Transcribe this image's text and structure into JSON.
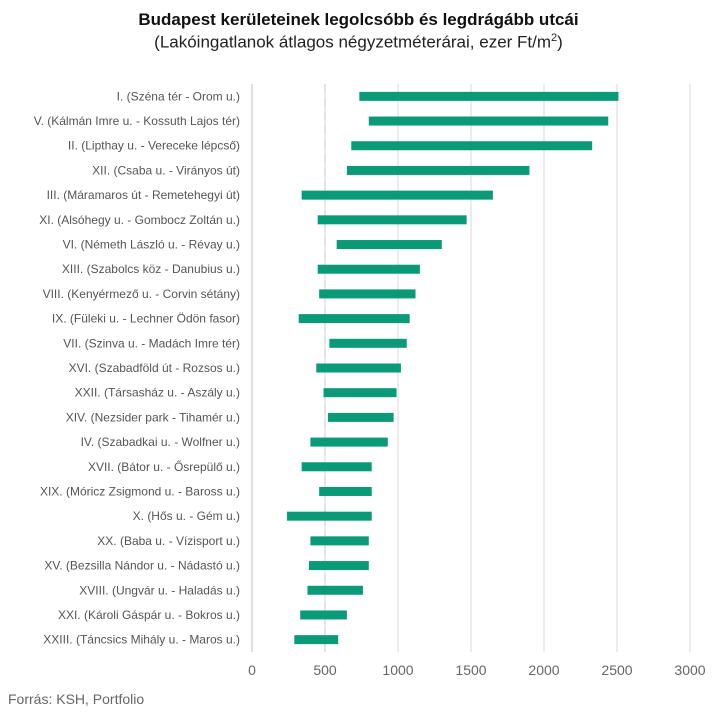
{
  "title": "Budapest kerületeinek legolcsóbb és legdrágább utcái",
  "subtitle_main": "(Lakóingatlanok átlagos négyzetméterárai, ezer Ft/m",
  "subtitle_sup": "2",
  "subtitle_end": ")",
  "source": "Forrás: KSH, Portfolio",
  "colors": {
    "bar": "#0a9a78",
    "grid": "#d9d9d9",
    "axis": "#bfbfbf"
  },
  "chart_data": {
    "type": "bar",
    "orientation": "horizontal",
    "style": "floating range",
    "categories": [
      "I. (Széna tér - Orom u.)",
      "V. (Kálmán Imre u. - Kossuth Lajos tér)",
      "II. (Lipthay u. - Vereceke lépcső)",
      "XII. (Csaba u. - Virányos út)",
      "III. (Máramaros út - Remetehegyi út)",
      "XI. (Alsóhegy u. - Gombocz Zoltán u.)",
      "VI. (Németh László u. - Révay u.)",
      "XIII. (Szabolcs köz - Danubius u.)",
      "VIII. (Kenyérmező u. - Corvin sétány)",
      "IX. (Füleki u. - Lechner Ödön fasor)",
      "VII. (Szinva u. - Madách Imre tér)",
      "XVI. (Szabadföld út - Rozsos u.)",
      "XXII. (Társasház u. - Aszály u.)",
      "XIV. (Nezsider park - Tihamér u.)",
      "IV. (Szabadkai u. - Wolfner u.)",
      "XVII. (Bátor u. - Ősrepülő u.)",
      "XIX. (Móricz Zsigmond u. - Baross u.)",
      "X. (Hős u. - Gém u.)",
      "XX. (Baba u. - Vízisport u.)",
      "XV. (Bezsilla Nándor u. - Nádastó u.)",
      "XVIII. (Ungvár u. - Haladás u.)",
      "XXI. (Károli Gáspár u. - Bokros u.)",
      "XXIII. (Táncsics Mihály u. - Maros u.)"
    ],
    "series": [
      {
        "values_min": [
          735,
          800,
          680,
          650,
          340,
          450,
          580,
          450,
          460,
          320,
          530,
          440,
          490,
          520,
          400,
          340,
          460,
          240,
          400,
          390,
          380,
          330,
          290
        ],
        "values_max": [
          2510,
          2440,
          2330,
          1900,
          1650,
          1470,
          1300,
          1150,
          1120,
          1080,
          1060,
          1020,
          990,
          970,
          930,
          820,
          820,
          820,
          800,
          800,
          760,
          650,
          590
        ]
      }
    ],
    "xlim": [
      0,
      3000
    ],
    "xticks": [
      "0",
      "500",
      "1000",
      "1500",
      "2000",
      "2500",
      "3000"
    ],
    "grid": true,
    "dashed_reference_line": 500
  }
}
